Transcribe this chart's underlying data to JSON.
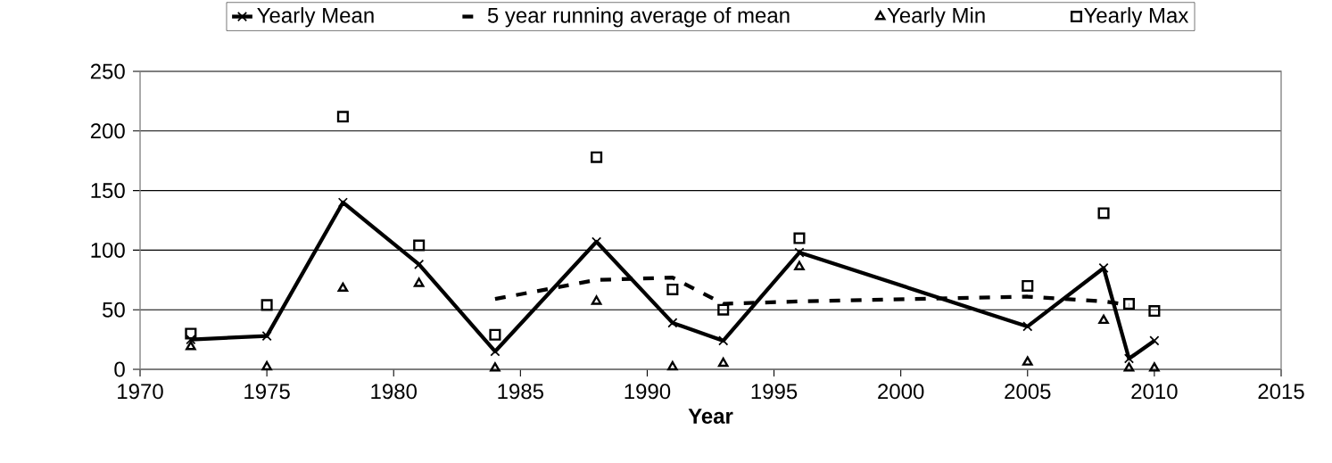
{
  "chart_data": {
    "type": "line",
    "xlabel": "Year",
    "x": [
      1972,
      1975,
      1978,
      1981,
      1984,
      1988,
      1991,
      1993,
      1996,
      2005,
      2008,
      2009,
      2010
    ],
    "series": [
      {
        "name": "Yearly Mean",
        "color": "#000000",
        "marker": "cross",
        "line_style": "solid",
        "values": [
          25,
          28,
          140,
          88,
          15,
          107,
          39,
          24,
          98,
          36,
          85,
          9,
          24
        ]
      },
      {
        "name": "5 year running average of mean",
        "color": "#000000",
        "marker": "none",
        "line_style": "dashed",
        "x": [
          1984,
          1988,
          1991,
          1993,
          1996,
          2005,
          2008,
          2009
        ],
        "values": [
          59,
          75,
          77,
          55,
          57,
          61,
          57,
          54
        ]
      },
      {
        "name": "Yearly Min",
        "type": "scatter",
        "color": "#000000",
        "marker": "triangle",
        "values": [
          19,
          2,
          68,
          72,
          1,
          57,
          2,
          5,
          86,
          6,
          41,
          1,
          1
        ]
      },
      {
        "name": "Yearly  Max",
        "type": "scatter",
        "color": "#000000",
        "marker": "square",
        "values": [
          30,
          54,
          212,
          104,
          29,
          178,
          67,
          50,
          110,
          70,
          131,
          55,
          49
        ]
      }
    ],
    "xlim": [
      1970,
      2015
    ],
    "xticks": [
      1970,
      1975,
      1980,
      1985,
      1990,
      1995,
      2000,
      2005,
      2010,
      2015
    ],
    "ylim": [
      0,
      250
    ],
    "yticks": [
      0,
      50,
      100,
      150,
      200,
      250
    ],
    "grid": "y",
    "legend": "top"
  }
}
